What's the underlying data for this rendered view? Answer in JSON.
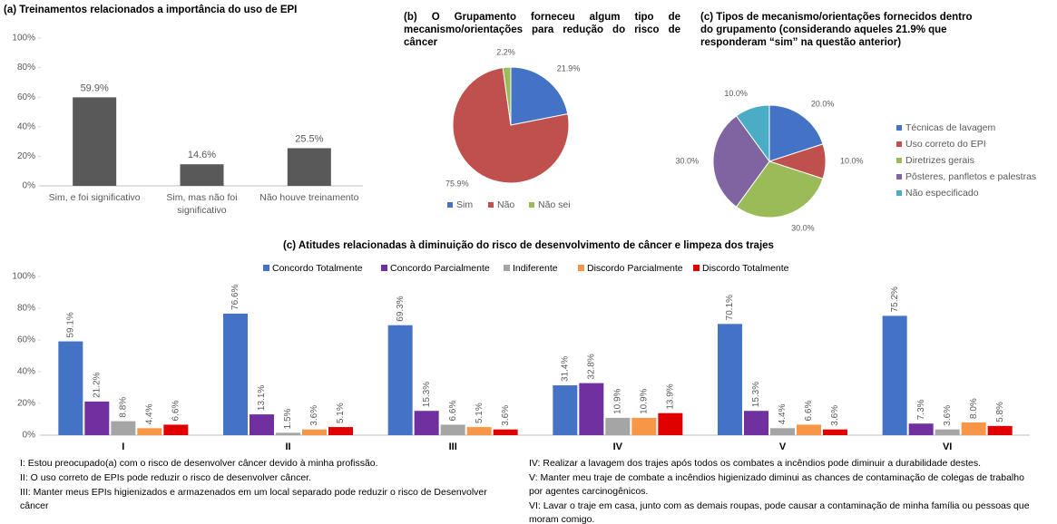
{
  "chart_data": [
    {
      "type": "bar",
      "title": "(a) Treinamentos relacionados a importância do uso de EPI",
      "categories": [
        "Sim, e foi significativo",
        "Sim, mas não foi significativo",
        "Não houve treinamento"
      ],
      "values": [
        59.9,
        14.6,
        25.5
      ],
      "value_labels": [
        "59.9%",
        "14.6%",
        "25.5%"
      ],
      "color": "#595959",
      "ylim": [
        0,
        100
      ],
      "yticks": [
        {
          "value": 0,
          "label": "0%"
        },
        {
          "value": 20,
          "label": "20%"
        },
        {
          "value": 40,
          "label": "40%"
        },
        {
          "value": 60,
          "label": "60%"
        },
        {
          "value": 80,
          "label": "80%"
        },
        {
          "value": 100,
          "label": "100%"
        }
      ],
      "grid": false
    },
    {
      "type": "pie",
      "title": "(b) O Grupamento forneceu algum tipo de mecanismo/orientações para redução do risco de câncer",
      "categories": [
        "Sim",
        "Não",
        "Não sei"
      ],
      "values": [
        21.9,
        75.9,
        2.2
      ],
      "value_labels": [
        "21.9%",
        "75.9%",
        "2.2%"
      ],
      "colors": [
        "#4472c4",
        "#c0504d",
        "#9bbb59"
      ],
      "legend": "bottom"
    },
    {
      "type": "pie",
      "title": "(c) Tipos de mecanismo/orientações fornecidos dentro do grupamento (considerando aqueles 21.9% que responderam “sim” na questão anterior)",
      "categories": [
        "Técnicas de lavagem",
        "Uso correto do EPI",
        "Diretrizes gerais",
        "Pôsteres, panfletos e palestras",
        "Não especificado"
      ],
      "values": [
        20,
        10,
        30,
        30,
        10
      ],
      "value_labels": [
        "20.0%",
        "10.0%",
        "30.0%",
        "30.0%",
        "10.0%"
      ],
      "colors": [
        "#4472c4",
        "#c0504d",
        "#9bbb59",
        "#8064a2",
        "#4bacc6"
      ],
      "legend": "right"
    },
    {
      "type": "grouped_bar",
      "title": "(c) Atitudes relacionadas à diminuição do risco de desenvolvimento de câncer e limpeza dos trajes",
      "categories": [
        "I",
        "II",
        "III",
        "IV",
        "V",
        "VI"
      ],
      "series": [
        {
          "name": "Concordo Totalmente",
          "color": "#4472c4",
          "values": [
            59.1,
            76.6,
            69.3,
            31.4,
            70.1,
            75.2
          ],
          "value_labels": [
            "59.1%",
            "76.6%",
            "69.3%",
            "31.4%",
            "70.1%",
            "75.2%"
          ]
        },
        {
          "name": "Concordo Parcialmente",
          "color": "#7030a0",
          "values": [
            21.2,
            13.1,
            15.3,
            32.8,
            15.3,
            7.3
          ],
          "value_labels": [
            "21.2%",
            "13.1%",
            "15.3%",
            "32.8%",
            "15.3%",
            "7.3%"
          ]
        },
        {
          "name": "Indiferente",
          "color": "#a5a5a5",
          "values": [
            8.8,
            1.5,
            6.6,
            10.9,
            4.4,
            3.6
          ],
          "value_labels": [
            "8.8%",
            "1.5%",
            "6.6%",
            "10.9%",
            "4.4%",
            "3.6%"
          ]
        },
        {
          "name": "Discordo Parcialmente",
          "color": "#f79646",
          "values": [
            4.4,
            3.6,
            5.1,
            10.9,
            6.6,
            8.0
          ],
          "value_labels": [
            "4.4%",
            "3.6%",
            "5.1%",
            "10.9%",
            "6.6%",
            "8.0%"
          ]
        },
        {
          "name": "Discordo Totalmente",
          "color": "#e00000",
          "values": [
            6.6,
            5.1,
            3.6,
            13.9,
            3.6,
            5.8
          ],
          "value_labels": [
            "6.6%",
            "5.1%",
            "3.6%",
            "13.9%",
            "3.6%",
            "5.8%"
          ]
        }
      ],
      "ylim": [
        0,
        100
      ],
      "yticks": [
        {
          "value": 0,
          "label": "0%"
        },
        {
          "value": 20,
          "label": "20%"
        },
        {
          "value": 40,
          "label": "40%"
        },
        {
          "value": 60,
          "label": "60%"
        },
        {
          "value": 80,
          "label": "80%"
        },
        {
          "value": 100,
          "label": "100%"
        }
      ],
      "grid": false,
      "legend": "top"
    }
  ],
  "footnotes": [
    "I: Estou preocupado(a) com o risco de desenvolver câncer devido à minha profissão.",
    "II: O uso correto de EPIs pode reduzir o risco de desenvolver câncer.",
    "III: Manter meus EPIs higienizados e armazenados em um local separado pode reduzir o risco de Desenvolver câncer",
    "IV: Realizar a lavagem dos trajes após todos os combates a incêndios pode diminuir a durabilidade destes.",
    "V: Manter meu traje de combate a incêndios higienizado diminui as chances de contaminação de colegas de trabalho por agentes carcinogênicos.",
    "VI: Lavar o traje em casa, junto com as demais roupas, pode causar a contaminação de minha família ou pessoas que moram comigo."
  ]
}
